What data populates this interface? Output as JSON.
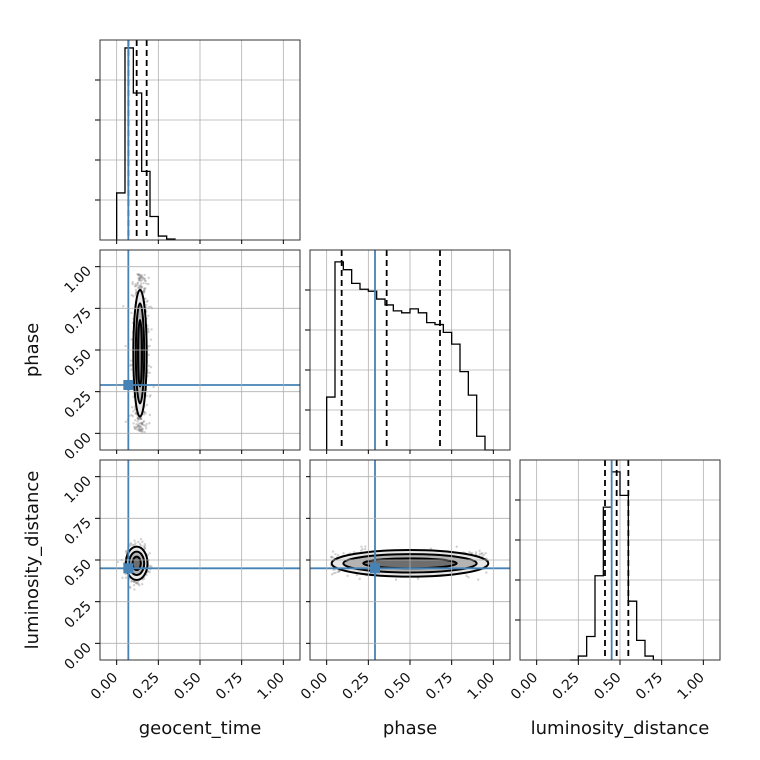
{
  "chart_data": {
    "type": "corner",
    "parameters": [
      "geocent_time",
      "phase",
      "luminosity_distance"
    ],
    "truths": {
      "geocent_time": 0.07,
      "phase": 0.29,
      "luminosity_distance": 0.45
    },
    "tick_labels": [
      "0.00",
      "0.25",
      "0.50",
      "0.75",
      "1.00"
    ],
    "xlim": [
      -0.1,
      1.1
    ],
    "grid": true,
    "histograms": {
      "geocent_time": {
        "bin_edges": [
          0.0,
          0.05,
          0.1,
          0.15,
          0.2,
          0.25,
          0.3,
          0.35
        ],
        "counts": [
          0.24,
          0.98,
          0.75,
          0.35,
          0.12,
          0.02,
          0.005
        ],
        "ylim": [
          0,
          1.0
        ],
        "quantiles": [
          0.07,
          0.12,
          0.18
        ]
      },
      "phase": {
        "bin_edges": [
          0.0,
          0.05,
          0.1,
          0.15,
          0.2,
          0.25,
          0.3,
          0.35,
          0.4,
          0.45,
          0.5,
          0.55,
          0.6,
          0.65,
          0.7,
          0.75,
          0.8,
          0.85,
          0.9,
          0.95,
          1.0
        ],
        "counts": [
          0.27,
          0.96,
          0.92,
          0.85,
          0.82,
          0.81,
          0.77,
          0.74,
          0.71,
          0.7,
          0.72,
          0.7,
          0.65,
          0.64,
          0.6,
          0.54,
          0.4,
          0.28,
          0.07,
          0.0
        ],
        "ylim": [
          0,
          1.0
        ],
        "quantiles": [
          0.09,
          0.36,
          0.68
        ]
      },
      "luminosity_distance": {
        "bin_edges": [
          0.2,
          0.25,
          0.3,
          0.35,
          0.4,
          0.45,
          0.5,
          0.55,
          0.6,
          0.65,
          0.7,
          0.75
        ],
        "counts": [
          0.0,
          0.02,
          0.12,
          0.43,
          0.78,
          0.96,
          0.84,
          0.3,
          0.1,
          0.02,
          0.0
        ],
        "ylim": [
          0,
          1.0
        ],
        "quantiles": [
          0.41,
          0.48,
          0.55
        ]
      }
    },
    "pairs": [
      {
        "x": "geocent_time",
        "y": "phase",
        "center": [
          0.14,
          0.48
        ],
        "spread": [
          0.025,
          0.26
        ],
        "contours": [
          [
            0.04,
            0.38
          ],
          [
            0.025,
            0.3
          ],
          [
            0.012,
            0.2
          ]
        ]
      },
      {
        "x": "geocent_time",
        "y": "luminosity_distance",
        "center": [
          0.12,
          0.48
        ],
        "spread": [
          0.03,
          0.05
        ],
        "contours": [
          [
            0.065,
            0.1
          ],
          [
            0.045,
            0.07
          ],
          [
            0.025,
            0.04
          ]
        ]
      },
      {
        "x": "phase",
        "y": "luminosity_distance",
        "center": [
          0.5,
          0.48
        ],
        "spread": [
          0.26,
          0.035
        ],
        "contours": [
          [
            0.47,
            0.08
          ],
          [
            0.4,
            0.055
          ],
          [
            0.28,
            0.03
          ]
        ]
      }
    ]
  }
}
